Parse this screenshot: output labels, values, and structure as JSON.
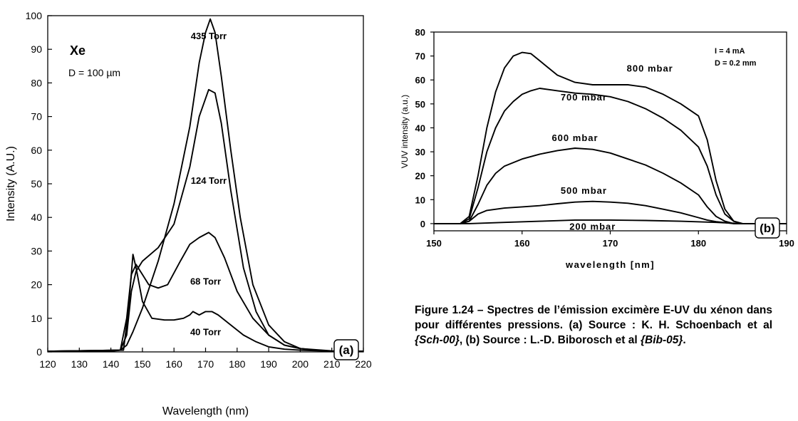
{
  "chart_data": [
    {
      "type": "line",
      "panel_label": "(a)",
      "xlabel": "Wavelength (nm)",
      "ylabel": "Intensity (A.U.)",
      "xlim": [
        120,
        220
      ],
      "ylim": [
        0,
        100
      ],
      "xticks": [
        "120",
        "130",
        "140",
        "150",
        "160",
        "170",
        "180",
        "190",
        "200",
        "210",
        "220"
      ],
      "yticks": [
        "0",
        "10",
        "20",
        "30",
        "40",
        "50",
        "60",
        "70",
        "80",
        "90",
        "100"
      ],
      "grid": false,
      "annotations": {
        "species": "Xe",
        "diameter": "D = 100 µm"
      },
      "series": [
        {
          "name": "435 Torr",
          "label_at": [
            171,
            93
          ],
          "x": [
            120,
            140,
            143,
            145,
            147,
            150,
            155,
            160,
            165,
            168,
            170,
            171.5,
            173,
            175,
            178,
            181,
            185,
            190,
            195,
            200,
            205,
            210,
            220
          ],
          "y": [
            0.2,
            0.2,
            0.5,
            2,
            6,
            13,
            27,
            44,
            67,
            86,
            95,
            99,
            95,
            82,
            60,
            40,
            20,
            8,
            3,
            1,
            0.5,
            0.2,
            0.2
          ]
        },
        {
          "name": "124 Torr",
          "label_at": [
            171,
            50
          ],
          "x": [
            120,
            143,
            145,
            146.5,
            148,
            150,
            155,
            160,
            165,
            168,
            171,
            173,
            175,
            178,
            182,
            186,
            190,
            195,
            200,
            205,
            210,
            220
          ],
          "y": [
            0.2,
            0.5,
            5,
            18,
            24,
            27,
            31,
            38,
            55,
            70,
            78,
            77,
            68,
            48,
            25,
            12,
            5,
            2,
            1,
            0.5,
            0.2,
            0.2
          ]
        },
        {
          "name": "68 Torr",
          "label_at": [
            170,
            20
          ],
          "x": [
            120,
            143,
            145,
            146.5,
            148,
            150,
            152,
            155,
            158,
            162,
            165,
            168,
            171,
            173,
            176,
            180,
            185,
            190,
            195,
            200,
            210,
            220
          ],
          "y": [
            0.2,
            0.5,
            10,
            23,
            26,
            23,
            20,
            19,
            20,
            27,
            32,
            34,
            35.5,
            34,
            28,
            18,
            10,
            5,
            2,
            1,
            0.3,
            0.2
          ]
        },
        {
          "name": "40 Torr",
          "label_at": [
            170,
            5
          ],
          "x": [
            120,
            144,
            145.5,
            147,
            148,
            150,
            153,
            157,
            160,
            163,
            165,
            166,
            168,
            170,
            172,
            174,
            178,
            182,
            186,
            190,
            195,
            200,
            210,
            220
          ],
          "y": [
            0.2,
            0.5,
            12,
            29,
            25,
            15,
            10,
            9.5,
            9.5,
            10,
            11,
            12,
            11,
            12,
            12,
            11,
            8,
            5,
            3,
            1.5,
            0.8,
            0.5,
            0.2,
            0.2
          ]
        }
      ]
    },
    {
      "type": "line",
      "panel_label": "(b)",
      "xlabel": "wavelength [nm]",
      "ylabel": "VUV intensity (a.u.)",
      "xlim": [
        150,
        190
      ],
      "ylim": [
        -3,
        80
      ],
      "xticks": [
        "150",
        "160",
        "170",
        "180",
        "190"
      ],
      "yticks": [
        "0",
        "10",
        "20",
        "30",
        "40",
        "50",
        "60",
        "70",
        "80"
      ],
      "grid": false,
      "annotations": {
        "current": "I = 4 mA",
        "diameter": "D = 0.2 mm"
      },
      "series": [
        {
          "name": "800 mbar",
          "label_at": [
            174.5,
            63.5
          ],
          "x": [
            150,
            153,
            154,
            155,
            156,
            157,
            158,
            159,
            160,
            161,
            162,
            164,
            166,
            168,
            170,
            172,
            174,
            176,
            178,
            180,
            181,
            182,
            183,
            184,
            185,
            190
          ],
          "y": [
            0,
            0,
            3,
            20,
            40,
            55,
            65,
            70,
            71.5,
            71,
            68,
            62,
            59,
            58,
            58,
            58,
            57,
            54,
            50,
            45,
            35,
            18,
            6,
            1,
            0,
            0
          ]
        },
        {
          "name": "700 mbar",
          "label_at": [
            167,
            51.5
          ],
          "x": [
            150,
            153,
            154,
            155,
            156,
            157,
            158,
            159,
            160,
            161,
            162,
            164,
            166,
            168,
            170,
            172,
            174,
            176,
            178,
            180,
            181,
            182,
            183,
            184,
            185,
            190
          ],
          "y": [
            0,
            0,
            2,
            15,
            30,
            40,
            47,
            51,
            54,
            55.5,
            56.5,
            55.5,
            54.5,
            54,
            53,
            51,
            48,
            44,
            39,
            32,
            24,
            12,
            4,
            1,
            0,
            0
          ]
        },
        {
          "name": "600 mbar",
          "label_at": [
            166,
            34.5
          ],
          "x": [
            150,
            153,
            154,
            155,
            156,
            157,
            158,
            160,
            162,
            164,
            166,
            168,
            170,
            172,
            174,
            176,
            178,
            180,
            181,
            182,
            183,
            184,
            190
          ],
          "y": [
            0,
            0,
            1,
            8,
            16,
            21,
            24,
            27,
            29,
            30.5,
            31.5,
            31,
            29.5,
            27,
            24.5,
            21,
            17,
            12,
            7,
            3,
            1,
            0,
            0
          ]
        },
        {
          "name": "500 mbar",
          "label_at": [
            167,
            12.5
          ],
          "x": [
            150,
            153,
            154,
            155,
            156,
            158,
            160,
            162,
            164,
            166,
            168,
            170,
            172,
            174,
            176,
            178,
            180,
            181,
            182,
            184,
            190
          ],
          "y": [
            0,
            0,
            1,
            4,
            5.5,
            6.5,
            7,
            7.5,
            8.3,
            9,
            9.3,
            9,
            8.5,
            7.5,
            6,
            4.5,
            2.5,
            1.5,
            0.8,
            0,
            0
          ]
        },
        {
          "name": "200 mbar",
          "label_at": [
            168,
            -2.5
          ],
          "x": [
            150,
            154,
            158,
            162,
            166,
            170,
            174,
            178,
            182,
            185,
            190
          ],
          "y": [
            0,
            0,
            0.5,
            1,
            1.5,
            1.5,
            1.3,
            1,
            0.5,
            0,
            0
          ]
        }
      ]
    }
  ],
  "caption": {
    "text": "Figure 1.24 – Spectres de l’émission excimère E-UV du xénon dans pour différentes pressions. (a) Source : K. H. Schoenbach et al ",
    "ref_a": "{Sch-00}",
    "mid": ", (b) Source : L.-D. Biborosch et al ",
    "ref_b": "{Bib-05}",
    "end": "."
  }
}
